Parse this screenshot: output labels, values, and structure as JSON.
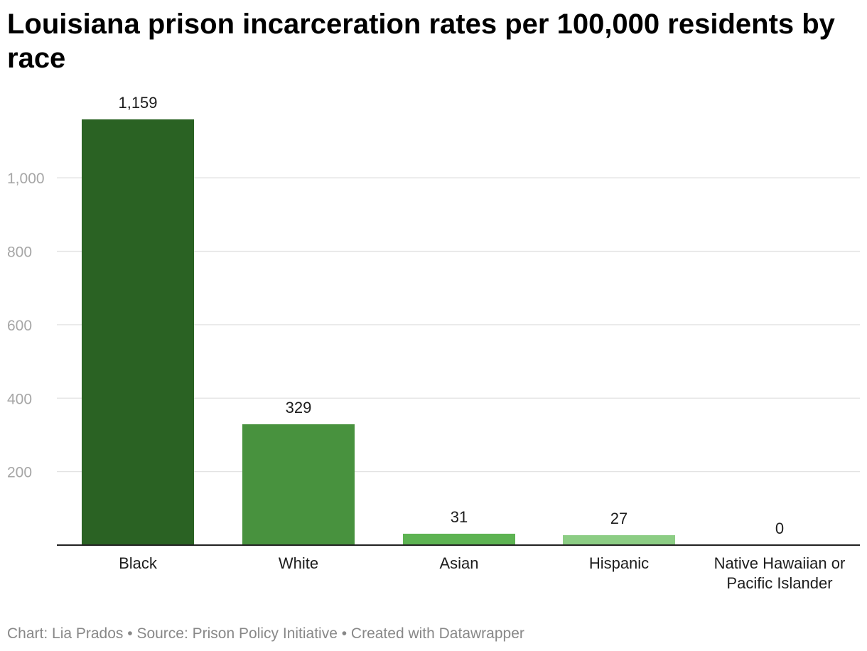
{
  "title": "Louisiana prison incarceration rates per 100,000 residents by race",
  "footer": "Chart: Lia Prados • Source: Prison Policy Initiative • Created with Datawrapper",
  "chart_data": {
    "type": "bar",
    "title": "Louisiana prison incarceration rates per 100,000 residents by race",
    "xlabel": "",
    "ylabel": "",
    "ylim": [
      0,
      1159
    ],
    "yticks": [
      200,
      400,
      600,
      800,
      1000
    ],
    "ytick_labels": [
      "200",
      "400",
      "600",
      "800",
      "1,000"
    ],
    "grid": true,
    "categories": [
      "Black",
      "White",
      "Asian",
      "Hispanic",
      "Native Hawaiian or Pacific Islander"
    ],
    "values": [
      1159,
      329,
      31,
      27,
      0
    ],
    "value_labels": [
      "1,159",
      "329",
      "31",
      "27",
      "0"
    ],
    "colors": [
      "#2a6223",
      "#48923e",
      "#5db352",
      "#8ccd84",
      "#b9e3b3"
    ]
  }
}
